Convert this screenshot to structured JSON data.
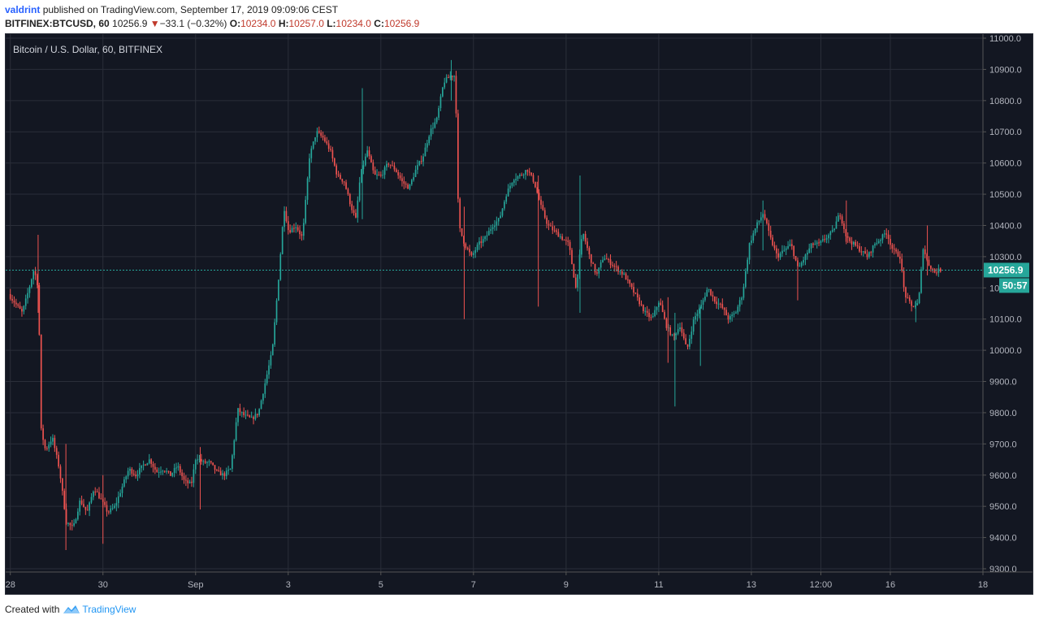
{
  "header": {
    "author": "valdrint",
    "published_text": "published on TradingView.com, September 17, 2019 09:09:06 CEST",
    "symbol": "BITFINEX:BTCUSD, 60",
    "last": "10256.9",
    "change": "−33.1 (−0.32%)",
    "o_label": "O:",
    "o_value": "10234.0",
    "h_label": "H:",
    "h_value": "10257.0",
    "l_label": "L:",
    "l_value": "10234.0",
    "c_label": "C:",
    "c_value": "10256.9"
  },
  "footer": {
    "created_with": "Created with",
    "brand": "TradingView"
  },
  "colors": {
    "background": "#131722",
    "grid": "#2a2e39",
    "up": "#26a69a",
    "down": "#ef5350",
    "text": "#b2b5be",
    "price_tag": "#26a69a"
  },
  "chart_data": {
    "type": "candlestick",
    "title": "Bitcoin / U.S. Dollar, 60, BITFINEX",
    "timeframe": "60",
    "last_price": 10256.9,
    "last_price_label": "10256.9",
    "countdown": "50:57",
    "ylim": [
      9300,
      11000
    ],
    "y_ticks": [
      "9300.0",
      "9400.0",
      "9500.0",
      "9600.0",
      "9700.0",
      "9800.0",
      "9900.0",
      "10000.0",
      "10100.0",
      "10200.0",
      "10300.0",
      "10400.0",
      "10500.0",
      "10600.0",
      "10700.0",
      "10800.0",
      "10900.0",
      "11000.0"
    ],
    "x_ticks": [
      {
        "label": "28",
        "day": 0
      },
      {
        "label": "30",
        "day": 2
      },
      {
        "label": "Sep",
        "day": 4
      },
      {
        "label": "3",
        "day": 6
      },
      {
        "label": "5",
        "day": 8
      },
      {
        "label": "7",
        "day": 10
      },
      {
        "label": "9",
        "day": 12
      },
      {
        "label": "11",
        "day": 14
      },
      {
        "label": "13",
        "day": 16
      },
      {
        "label": "12:00",
        "day": 17.5
      },
      {
        "label": "16",
        "day": 19
      },
      {
        "label": "18",
        "day": 21
      }
    ],
    "x_range": [
      -0.1,
      21
    ],
    "price_path": [
      [
        0.0,
        10180
      ],
      [
        0.15,
        10150
      ],
      [
        0.3,
        10120
      ],
      [
        0.45,
        10200
      ],
      [
        0.55,
        10260
      ],
      [
        0.65,
        10200
      ],
      [
        0.7,
        9750
      ],
      [
        0.8,
        9680
      ],
      [
        0.95,
        9720
      ],
      [
        1.1,
        9620
      ],
      [
        1.25,
        9450
      ],
      [
        1.4,
        9430
      ],
      [
        1.55,
        9520
      ],
      [
        1.7,
        9480
      ],
      [
        1.85,
        9560
      ],
      [
        2.0,
        9520
      ],
      [
        2.15,
        9480
      ],
      [
        2.3,
        9500
      ],
      [
        2.45,
        9560
      ],
      [
        2.6,
        9620
      ],
      [
        2.75,
        9600
      ],
      [
        2.9,
        9630
      ],
      [
        3.05,
        9650
      ],
      [
        3.2,
        9610
      ],
      [
        3.35,
        9620
      ],
      [
        3.5,
        9600
      ],
      [
        3.65,
        9630
      ],
      [
        3.8,
        9580
      ],
      [
        3.95,
        9570
      ],
      [
        4.05,
        9660
      ],
      [
        4.2,
        9640
      ],
      [
        4.35,
        9640
      ],
      [
        4.5,
        9610
      ],
      [
        4.65,
        9600
      ],
      [
        4.8,
        9620
      ],
      [
        4.95,
        9810
      ],
      [
        5.1,
        9790
      ],
      [
        5.25,
        9780
      ],
      [
        5.4,
        9800
      ],
      [
        5.55,
        9900
      ],
      [
        5.7,
        10000
      ],
      [
        5.85,
        10260
      ],
      [
        5.95,
        10460
      ],
      [
        6.05,
        10380
      ],
      [
        6.2,
        10400
      ],
      [
        6.35,
        10360
      ],
      [
        6.5,
        10620
      ],
      [
        6.65,
        10700
      ],
      [
        6.8,
        10680
      ],
      [
        6.95,
        10640
      ],
      [
        7.1,
        10560
      ],
      [
        7.25,
        10540
      ],
      [
        7.4,
        10460
      ],
      [
        7.5,
        10420
      ],
      [
        7.6,
        10560
      ],
      [
        7.75,
        10640
      ],
      [
        7.9,
        10560
      ],
      [
        8.05,
        10560
      ],
      [
        8.2,
        10600
      ],
      [
        8.35,
        10580
      ],
      [
        8.5,
        10540
      ],
      [
        8.65,
        10520
      ],
      [
        8.8,
        10580
      ],
      [
        8.95,
        10620
      ],
      [
        9.1,
        10700
      ],
      [
        9.25,
        10740
      ],
      [
        9.4,
        10860
      ],
      [
        9.55,
        10880
      ],
      [
        9.65,
        10880
      ],
      [
        9.72,
        10400
      ],
      [
        9.85,
        10340
      ],
      [
        10.0,
        10300
      ],
      [
        10.15,
        10340
      ],
      [
        10.3,
        10360
      ],
      [
        10.45,
        10400
      ],
      [
        10.6,
        10420
      ],
      [
        10.75,
        10500
      ],
      [
        10.9,
        10550
      ],
      [
        11.05,
        10560
      ],
      [
        11.2,
        10580
      ],
      [
        11.35,
        10540
      ],
      [
        11.5,
        10460
      ],
      [
        11.65,
        10400
      ],
      [
        11.8,
        10380
      ],
      [
        11.95,
        10360
      ],
      [
        12.1,
        10340
      ],
      [
        12.25,
        10200
      ],
      [
        12.4,
        10380
      ],
      [
        12.55,
        10300
      ],
      [
        12.7,
        10240
      ],
      [
        12.85,
        10300
      ],
      [
        13.0,
        10280
      ],
      [
        13.15,
        10260
      ],
      [
        13.3,
        10240
      ],
      [
        13.45,
        10200
      ],
      [
        13.6,
        10160
      ],
      [
        13.75,
        10120
      ],
      [
        13.9,
        10100
      ],
      [
        14.05,
        10160
      ],
      [
        14.2,
        10080
      ],
      [
        14.35,
        10040
      ],
      [
        14.5,
        10080
      ],
      [
        14.65,
        10000
      ],
      [
        14.8,
        10100
      ],
      [
        14.95,
        10140
      ],
      [
        15.1,
        10200
      ],
      [
        15.25,
        10160
      ],
      [
        15.4,
        10140
      ],
      [
        15.55,
        10100
      ],
      [
        15.7,
        10120
      ],
      [
        15.85,
        10180
      ],
      [
        16.0,
        10340
      ],
      [
        16.15,
        10400
      ],
      [
        16.3,
        10440
      ],
      [
        16.45,
        10360
      ],
      [
        16.6,
        10300
      ],
      [
        16.75,
        10320
      ],
      [
        16.9,
        10340
      ],
      [
        17.05,
        10260
      ],
      [
        17.2,
        10300
      ],
      [
        17.35,
        10340
      ],
      [
        17.5,
        10340
      ],
      [
        17.65,
        10360
      ],
      [
        17.8,
        10380
      ],
      [
        17.95,
        10440
      ],
      [
        18.1,
        10360
      ],
      [
        18.25,
        10340
      ],
      [
        18.4,
        10320
      ],
      [
        18.55,
        10300
      ],
      [
        18.7,
        10340
      ],
      [
        18.85,
        10360
      ],
      [
        18.95,
        10380
      ],
      [
        19.1,
        10320
      ],
      [
        19.25,
        10300
      ],
      [
        19.35,
        10180
      ],
      [
        19.5,
        10140
      ],
      [
        19.65,
        10150
      ],
      [
        19.75,
        10330
      ],
      [
        19.85,
        10280
      ],
      [
        20.0,
        10250
      ],
      [
        20.1,
        10257
      ]
    ],
    "wick_spikes": [
      {
        "day": 0.6,
        "high": 10370,
        "low": 10120
      },
      {
        "day": 1.2,
        "high": 9700,
        "low": 9360
      },
      {
        "day": 2.0,
        "high": 9600,
        "low": 9380
      },
      {
        "day": 4.1,
        "high": 9690,
        "low": 9490
      },
      {
        "day": 7.6,
        "high": 10840,
        "low": 10420
      },
      {
        "day": 9.52,
        "high": 10930,
        "low": 10800
      },
      {
        "day": 9.8,
        "high": 10460,
        "low": 10100
      },
      {
        "day": 11.4,
        "high": 10560,
        "low": 10140
      },
      {
        "day": 12.3,
        "high": 10560,
        "low": 10120
      },
      {
        "day": 14.2,
        "high": 10170,
        "low": 9960
      },
      {
        "day": 14.35,
        "high": 10120,
        "low": 9820
      },
      {
        "day": 14.9,
        "high": 10140,
        "low": 9950
      },
      {
        "day": 16.25,
        "high": 10480,
        "low": 10320
      },
      {
        "day": 17.0,
        "high": 10280,
        "low": 10160
      },
      {
        "day": 18.05,
        "high": 10480,
        "low": 10340
      },
      {
        "day": 19.55,
        "high": 10160,
        "low": 10090
      },
      {
        "day": 19.8,
        "high": 10400,
        "low": 10240
      }
    ]
  }
}
